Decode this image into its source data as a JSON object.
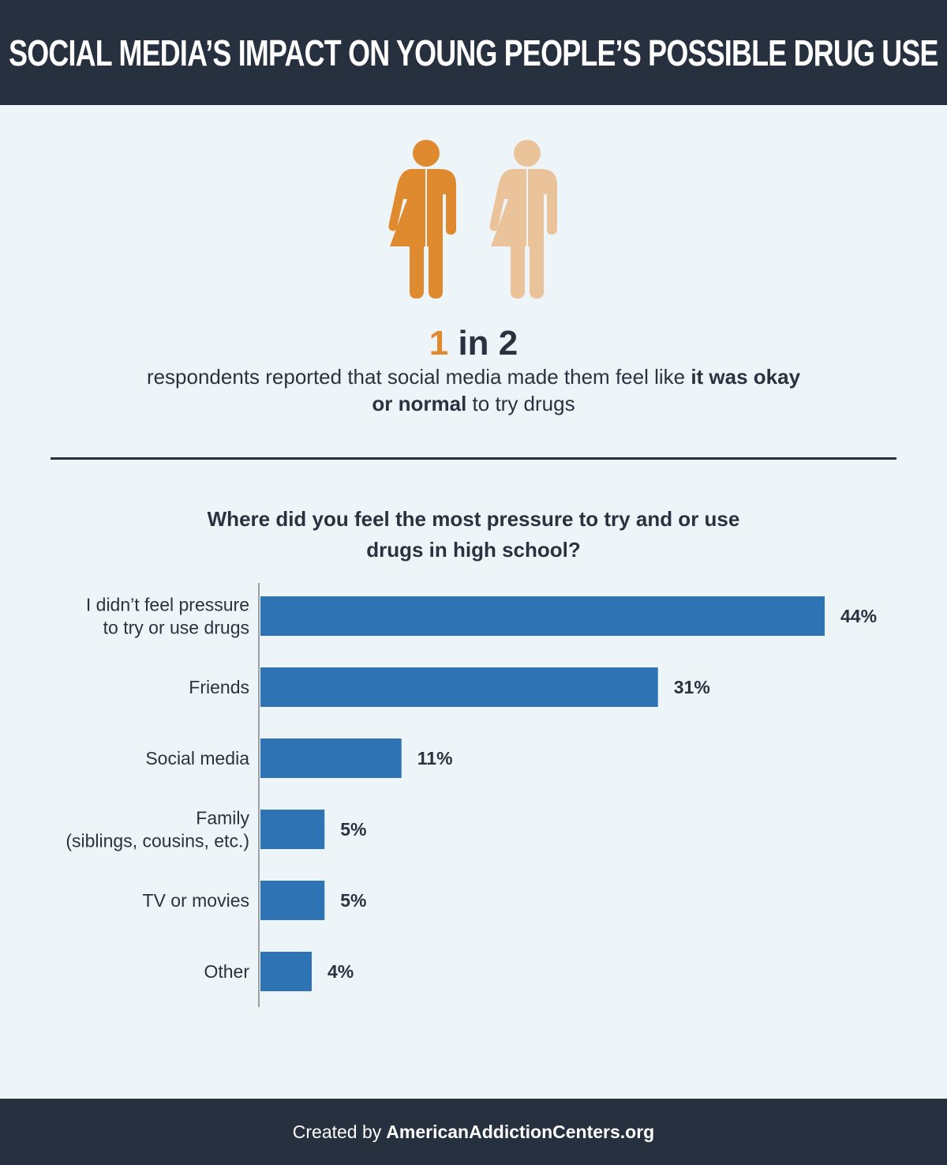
{
  "header": {
    "title": "SOCIAL MEDIA’S IMPACT ON YOUNG PEOPLE’S POSSIBLE DRUG USE"
  },
  "stat": {
    "highlight": "1",
    "rest": "in 2",
    "caption_plain": "respondents reported that social media made them feel like ",
    "caption_bold": "it was okay or normal",
    "caption_end": " to try drugs",
    "icons": [
      "person-icon",
      "person-icon"
    ],
    "icon_colors": [
      "#e08a30",
      "#ebc39a"
    ]
  },
  "chart_data": {
    "type": "bar",
    "orientation": "horizontal",
    "title": "Where did you feel the most pressure to try and or use drugs in high school?",
    "categories": [
      [
        "I didn’t feel pressure",
        "to try or use drugs"
      ],
      [
        "Friends"
      ],
      [
        "Social media"
      ],
      [
        "Family",
        "(siblings, cousins, etc.)"
      ],
      [
        "TV or movies"
      ],
      [
        "Other"
      ]
    ],
    "values": [
      44,
      31,
      11,
      5,
      5,
      4
    ],
    "value_labels": [
      "44%",
      "31%",
      "11%",
      "5%",
      "5%",
      "4%"
    ],
    "xlim": [
      0,
      50
    ],
    "bar_color": "#2e74b5",
    "grid": false
  },
  "footer": {
    "prefix": "Created by",
    "site": "AmericanAddictionCenters.org"
  }
}
